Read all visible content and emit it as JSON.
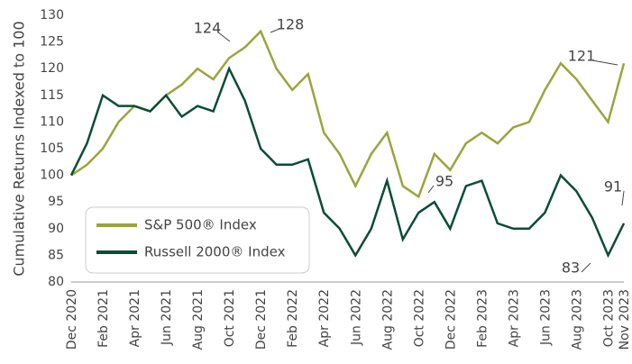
{
  "chart_data": {
    "type": "line",
    "y_label": "Cumulative Returns Indexed to 100",
    "categories": [
      "Dec 2020",
      null,
      "Feb 2021",
      null,
      "Apr 2021",
      null,
      "Jun 2021",
      null,
      "Aug 2021",
      null,
      "Oct 2021",
      null,
      "Dec 2021",
      null,
      "Feb 2022",
      null,
      "Apr 2022",
      null,
      "Jun 2022",
      null,
      "Aug 2022",
      null,
      "Oct 2022",
      null,
      "Dec 2022",
      null,
      "Feb 2023",
      null,
      "Apr 2023",
      null,
      "Jun 2023",
      null,
      "Aug 2023",
      null,
      "Oct 2023",
      "Nov 2023"
    ],
    "series": [
      {
        "name": "S&P 500® Index",
        "color": "#9aa43e",
        "values": [
          100,
          102,
          105,
          110,
          113,
          112,
          115,
          117,
          120,
          118,
          122,
          124,
          127,
          120,
          116,
          119,
          108,
          104,
          98,
          104,
          108,
          98,
          96,
          104,
          101,
          106,
          108,
          106,
          109,
          110,
          116,
          121,
          118,
          114,
          110,
          121
        ]
      },
      {
        "name": "Russell 2000® Index",
        "color": "#0b4d35",
        "values": [
          100,
          106,
          115,
          113,
          113,
          112,
          115,
          111,
          113,
          112,
          120,
          114,
          105,
          102,
          102,
          103,
          93,
          90,
          85,
          90,
          99,
          88,
          93,
          95,
          90,
          98,
          99,
          91,
          90,
          90,
          93,
          100,
          97,
          92,
          85,
          91
        ]
      }
    ],
    "annotations": [
      124,
      128,
      95,
      121,
      83,
      91
    ],
    "ylim": [
      80,
      130
    ],
    "yticks": [
      80,
      85,
      90,
      95,
      100,
      105,
      110,
      115,
      120,
      125,
      130
    ],
    "legend": "lower left",
    "grid": false
  }
}
